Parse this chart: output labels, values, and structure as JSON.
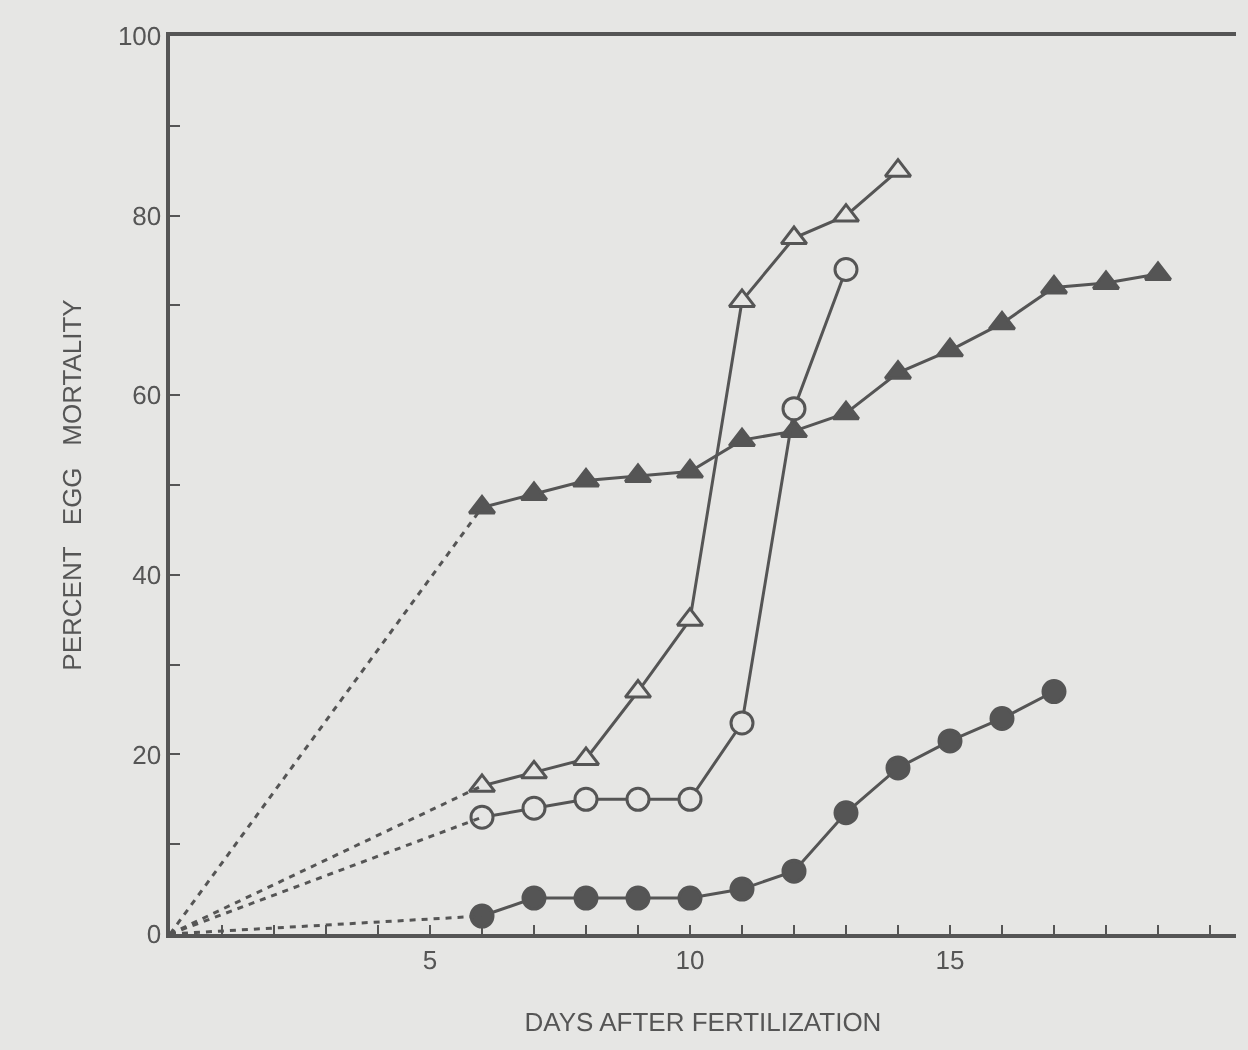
{
  "chart_data": {
    "type": "line",
    "xlabel": "DAYS AFTER FERTILIZATION",
    "ylabel": "PERCENT   EGG   MORTALITY",
    "xlim": [
      0,
      20.5
    ],
    "xticks": [
      {
        "value": 1,
        "label": null
      },
      {
        "value": 2,
        "label": null
      },
      {
        "value": 3,
        "label": null
      },
      {
        "value": 4,
        "label": null
      },
      5,
      {
        "value": 6,
        "label": null
      },
      {
        "value": 7,
        "label": null
      },
      {
        "value": 8,
        "label": null
      },
      {
        "value": 9,
        "label": null
      },
      10,
      {
        "value": 11,
        "label": null
      },
      {
        "value": 12,
        "label": null
      },
      {
        "value": 13,
        "label": null
      },
      {
        "value": 14,
        "label": null
      },
      15,
      {
        "value": 16,
        "label": null
      },
      {
        "value": 17,
        "label": null
      },
      {
        "value": 18,
        "label": null
      },
      {
        "value": 19,
        "label": null
      },
      {
        "value": 20,
        "label": null
      }
    ],
    "ylim": [
      0,
      100
    ],
    "yticks": [
      0,
      {
        "value": 10,
        "label": null
      },
      20,
      {
        "value": 30,
        "label": null
      },
      40,
      {
        "value": 50,
        "label": null
      },
      60,
      {
        "value": 70,
        "label": null
      },
      80,
      {
        "value": 90,
        "label": null
      },
      100
    ],
    "grid": false,
    "series": [
      {
        "color": "#555555",
        "marker": "triangle",
        "line_style": "solid",
        "x": [
          6,
          7,
          8,
          9,
          10,
          11,
          12,
          13,
          14,
          15,
          16,
          17,
          18,
          19
        ],
        "values": [
          47.5,
          49,
          50.5,
          51,
          51.5,
          55,
          56,
          58,
          62.5,
          65,
          68,
          72,
          72.5,
          73.5
        ]
      },
      {
        "color": "#555555",
        "marker": "triangle",
        "colors": [
          "#e6e6e4",
          "#e6e6e4",
          "#e6e6e4",
          "#e6e6e4",
          "#e6e6e4",
          "#e6e6e4",
          "#e6e6e4",
          "#e6e6e4",
          "#e6e6e4"
        ],
        "line_style": "solid",
        "x": [
          6,
          7,
          8,
          9,
          10,
          11,
          12,
          13,
          14
        ],
        "values": [
          16.5,
          18,
          19.5,
          27,
          35,
          70.5,
          77.5,
          80,
          85
        ]
      },
      {
        "color": "#555555",
        "marker": "circle",
        "colors": [
          "#e6e6e4",
          "#e6e6e4",
          "#e6e6e4",
          "#e6e6e4",
          "#e6e6e4",
          "#e6e6e4",
          "#e6e6e4",
          "#e6e6e4"
        ],
        "line_style": "solid",
        "x": [
          6,
          7,
          8,
          9,
          10,
          11,
          12,
          13
        ],
        "values": [
          13,
          14,
          15,
          15,
          15,
          23.5,
          58.5,
          74
        ]
      },
      {
        "color": "#555555",
        "marker": "circle",
        "line_style": "solid",
        "x": [
          6,
          7,
          8,
          9,
          10,
          11,
          12,
          13,
          14,
          15,
          16,
          17
        ],
        "values": [
          2,
          4,
          4,
          4,
          4,
          5,
          7,
          13.5,
          18.5,
          21.5,
          24,
          27
        ]
      },
      {
        "color": "#555555",
        "marker": "none",
        "line_style": "dotted",
        "x": [
          0,
          6
        ],
        "values": [
          0,
          47.5
        ]
      },
      {
        "color": "#555555",
        "marker": "none",
        "line_style": "dotted",
        "x": [
          0,
          6
        ],
        "values": [
          0,
          16.5
        ]
      },
      {
        "color": "#555555",
        "marker": "none",
        "line_style": "dotted",
        "x": [
          0,
          6
        ],
        "values": [
          0,
          13
        ]
      },
      {
        "color": "#555555",
        "marker": "none",
        "line_style": "dotted",
        "x": [
          0,
          6
        ],
        "values": [
          0,
          2
        ]
      }
    ]
  }
}
